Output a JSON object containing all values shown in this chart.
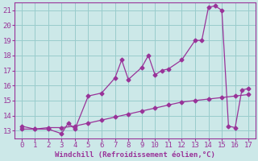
{
  "xlabel": "Windchill (Refroidissement éolien,°C)",
  "background_color": "#cce8e8",
  "line_color": "#993399",
  "grid_color": "#99cccc",
  "xlim": [
    -0.5,
    17.5
  ],
  "ylim": [
    12.5,
    21.5
  ],
  "xticks": [
    0,
    1,
    2,
    3,
    4,
    5,
    6,
    7,
    8,
    9,
    10,
    11,
    12,
    13,
    14,
    15,
    16,
    17
  ],
  "yticks": [
    13,
    14,
    15,
    16,
    17,
    18,
    19,
    20,
    21
  ],
  "series1_x": [
    0,
    1,
    2,
    3,
    3.5,
    4,
    5,
    6,
    7,
    7.5,
    8,
    9,
    9.5,
    10,
    10.5,
    11,
    12,
    13,
    13.5,
    14,
    14.5,
    15,
    15.5,
    16,
    16.5,
    17
  ],
  "series1_y": [
    13.3,
    13.1,
    13.1,
    12.8,
    13.5,
    13.1,
    15.3,
    15.5,
    16.5,
    17.7,
    16.4,
    17.2,
    18.0,
    16.7,
    17.0,
    17.1,
    17.7,
    19.0,
    19.0,
    21.2,
    21.3,
    21.0,
    13.3,
    13.2,
    15.7,
    15.8
  ],
  "series2_x": [
    0,
    1,
    2,
    3,
    4,
    5,
    6,
    7,
    8,
    9,
    10,
    11,
    12,
    13,
    14,
    15,
    16,
    17
  ],
  "series2_y": [
    13.1,
    13.1,
    13.2,
    13.2,
    13.3,
    13.5,
    13.7,
    13.9,
    14.1,
    14.3,
    14.5,
    14.7,
    14.9,
    15.0,
    15.1,
    15.2,
    15.3,
    15.4
  ],
  "marker1": "D",
  "marker2": "D",
  "markersize1": 2.5,
  "markersize2": 2.5,
  "fontsize_label": 6.5,
  "fontsize_tick": 6.5
}
